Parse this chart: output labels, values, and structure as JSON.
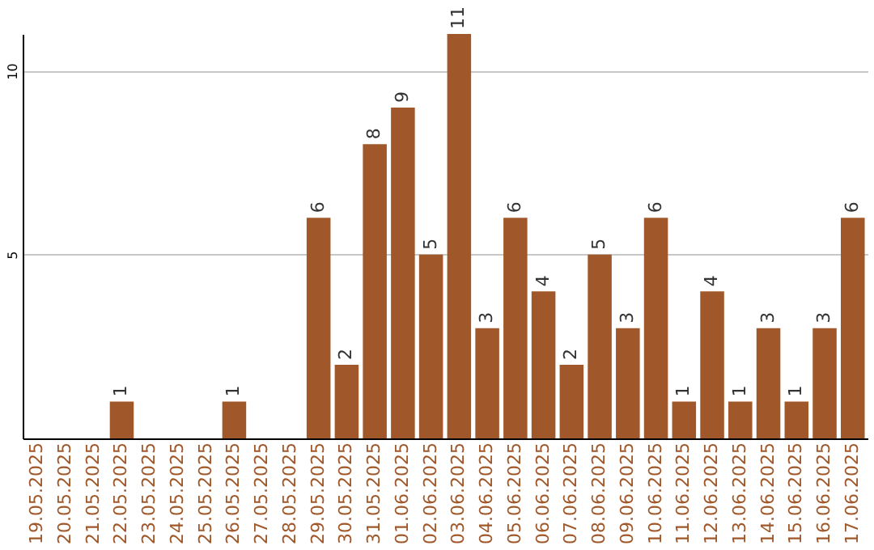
{
  "chart_data": {
    "type": "bar",
    "categories": [
      "19.05.2025",
      "20.05.2025",
      "21.05.2025",
      "22.05.2025",
      "23.05.2025",
      "24.05.2025",
      "25.05.2025",
      "26.05.2025",
      "27.05.2025",
      "28.05.2025",
      "29.05.2025",
      "30.05.2025",
      "31.05.2025",
      "01.06.2025",
      "02.06.2025",
      "03.06.2025",
      "04.06.2025",
      "05.06.2025",
      "06.06.2025",
      "07.06.2025",
      "08.06.2025",
      "09.06.2025",
      "10.06.2025",
      "11.06.2025",
      "12.06.2025",
      "13.06.2025",
      "14.06.2025",
      "15.06.2025",
      "16.06.2025",
      "17.06.2025"
    ],
    "values": [
      0,
      0,
      0,
      1,
      0,
      0,
      0,
      1,
      0,
      0,
      6,
      2,
      8,
      9,
      5,
      11,
      3,
      6,
      4,
      2,
      5,
      3,
      6,
      1,
      4,
      1,
      3,
      1,
      3,
      6
    ],
    "value_labels": [
      null,
      null,
      null,
      "1",
      null,
      null,
      null,
      "1",
      null,
      null,
      "6",
      "2",
      "8",
      "9",
      "5",
      "11",
      "3",
      "6",
      "4",
      "2",
      "5",
      "3",
      "6",
      "1",
      "4",
      "1",
      "3",
      "1",
      "3",
      "6"
    ],
    "color": "#a0582a",
    "ylim": [
      0,
      11
    ],
    "yticks": [
      5,
      10
    ],
    "grid": "y"
  }
}
